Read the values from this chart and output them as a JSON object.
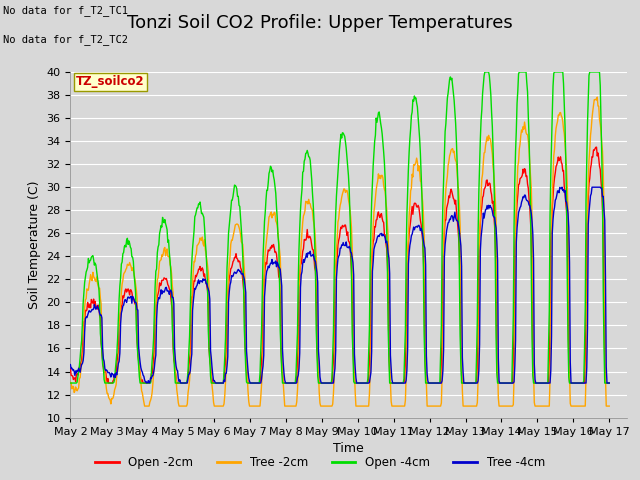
{
  "title": "Tonzi Soil CO2 Profile: Upper Temperatures",
  "xlabel": "Time",
  "ylabel": "Soil Temperature (C)",
  "ylim": [
    10,
    40
  ],
  "yticks": [
    10,
    12,
    14,
    16,
    18,
    20,
    22,
    24,
    26,
    28,
    30,
    32,
    34,
    36,
    38,
    40
  ],
  "background_color": "#d8d8d8",
  "plot_bg_color": "#d8d8d8",
  "grid_color": "#ffffff",
  "no_data_text": [
    "No data for f_T2_TC1",
    "No data for f_T2_TC2"
  ],
  "legend_label": "TZ_soilco2",
  "series_labels": [
    "Open -2cm",
    "Tree -2cm",
    "Open -4cm",
    "Tree -4cm"
  ],
  "series_colors": [
    "#ff0000",
    "#ffa500",
    "#00dd00",
    "#0000cc"
  ],
  "x_tick_labels": [
    "May 2",
    "May 3",
    "May 4",
    "May 5",
    "May 6",
    "May 7",
    "May 8",
    "May 9",
    "May 10",
    "May 11",
    "May 12",
    "May 13",
    "May 14",
    "May 15",
    "May 16",
    "May 17"
  ],
  "title_fontsize": 13,
  "axis_fontsize": 9,
  "tick_fontsize": 8
}
